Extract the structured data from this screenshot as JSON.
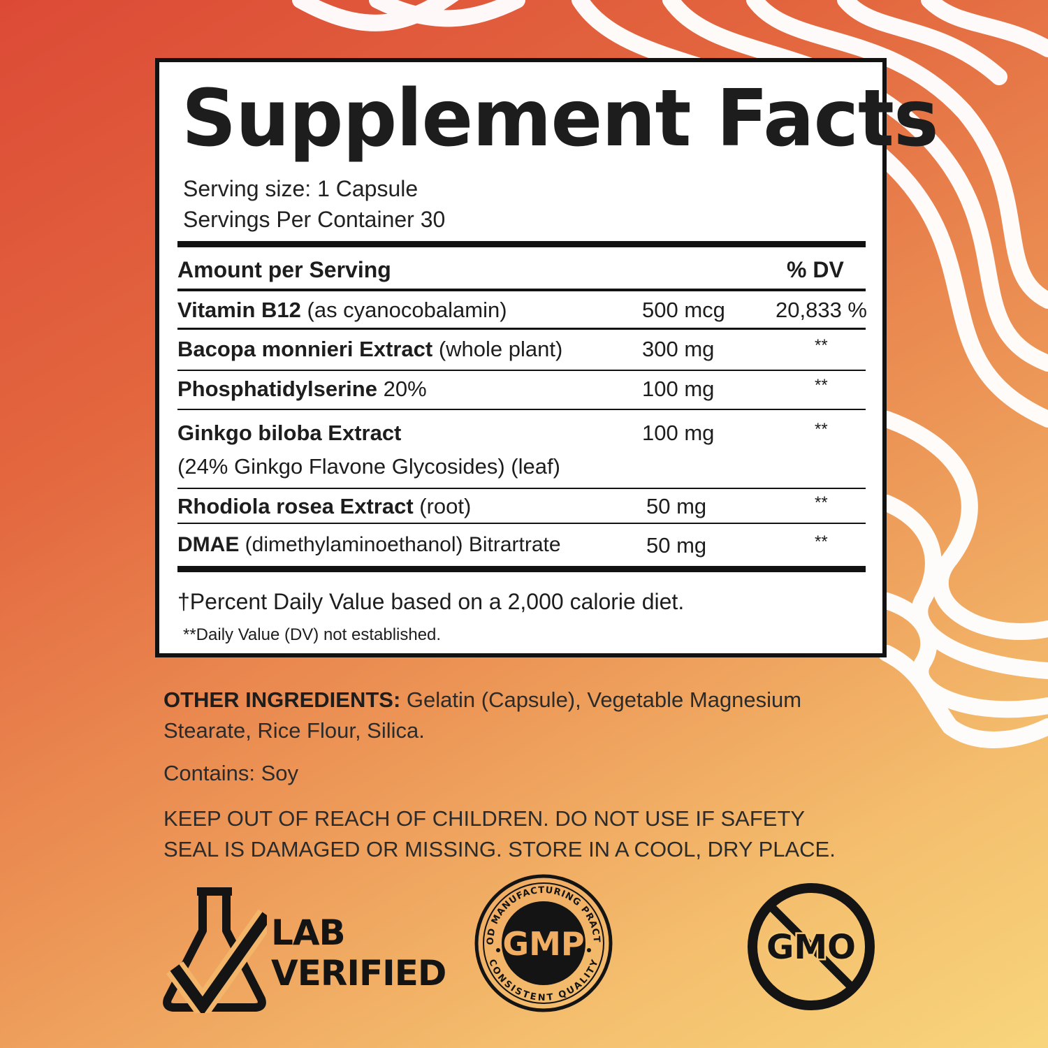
{
  "panel": {
    "title": "Supplement Facts",
    "serving_size": "Serving size: 1 Capsule",
    "servings_per_container": "Servings Per Container 30",
    "amount_header": "Amount per Serving",
    "dv_header": "% DV",
    "rows": [
      {
        "name": "Vitamin B12",
        "detail": " (as  cyanocobalamin)",
        "amount": "500 mcg",
        "dv": "20,833 %"
      },
      {
        "name": "Bacopa monnieri Extract",
        "detail": " (whole plant)",
        "amount": "300 mg",
        "dv": "**"
      },
      {
        "name": "Phosphatidylserine",
        "detail": " 20%",
        "amount": "100 mg",
        "dv": "**"
      },
      {
        "name": "Ginkgo biloba Extract",
        "detail": "(24% Ginkgo Flavone Glycosides) (leaf)",
        "amount": "100 mg",
        "dv": "**"
      },
      {
        "name": "Rhodiola rosea Extract",
        "detail": " (root)",
        "amount": "50 mg",
        "dv": "**"
      },
      {
        "name": "DMAE",
        "detail": "  (dimethylaminoethanol) Bitrartrate",
        "amount": "50 mg",
        "dv": "**"
      }
    ],
    "footnote_daily": "†Percent Daily Value based on a 2,000 calorie diet.",
    "footnote_dv": "**Daily Value (DV) not established."
  },
  "other_ingredients": {
    "label": "OTHER INGREDIENTS:",
    "line1": " Gelatin (Capsule), Vegetable Magnesium",
    "line2": "Stearate, Rice Flour, Silica."
  },
  "contains": "Contains: Soy",
  "warning": {
    "line1": "KEEP OUT OF REACH OF CHILDREN. DO NOT USE IF SAFETY",
    "line2": "SEAL IS DAMAGED OR MISSING. STORE IN A COOL, DRY PLACE."
  },
  "badges": {
    "lab_line1": "LAB",
    "lab_line2": "VERIFIED",
    "gmp_center": "GMP",
    "gmp_ring_top": "GOOD MANUFACTURING PRACTICE",
    "gmp_ring_bottom": "CONSISTENT QUALITY",
    "gmo_text": "GMO"
  },
  "colors": {
    "bg_top_left": "#dc4a36",
    "bg_bottom_right": "#f8d57c",
    "ink": "#121212",
    "panel": "#ffffff"
  }
}
